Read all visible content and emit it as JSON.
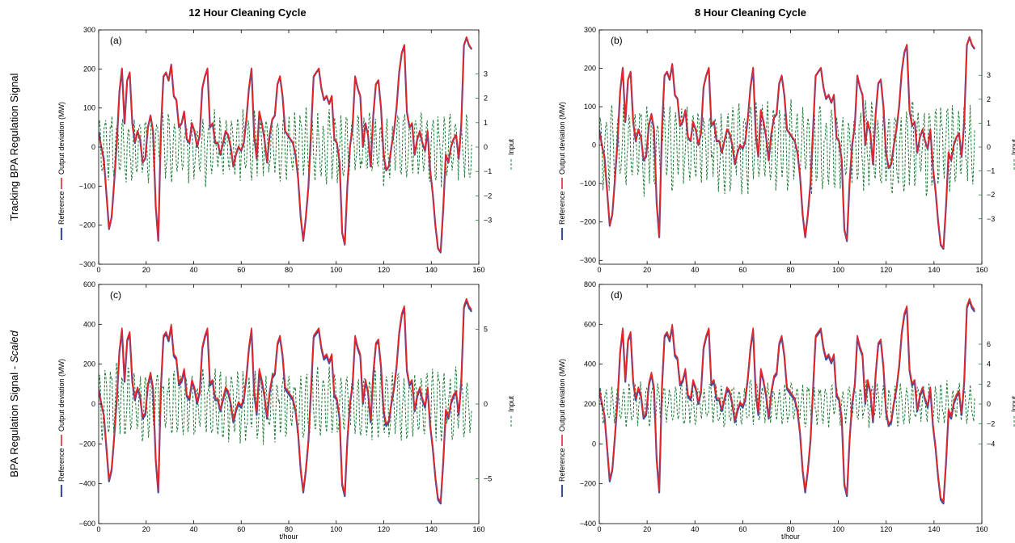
{
  "figure": {
    "col_titles": [
      "12 Hour Cleaning Cycle",
      "8 Hour Cleaning Cycle"
    ],
    "row_titles": [
      "Tracking BPA Regulation Signal",
      "BPA Regulation Signal -",
      "Scaled"
    ],
    "colors": {
      "reference": "#3b4ea0",
      "output": "#e4262b",
      "input": "#1f7a35"
    }
  },
  "chart_data": [
    {
      "type": "line",
      "panel_label": "(a)",
      "xlim": [
        0,
        160
      ],
      "ylim": [
        -300,
        300
      ],
      "y2lim": [
        -4.8,
        4.8
      ],
      "xticks": [
        0,
        20,
        40,
        60,
        80,
        100,
        120,
        140,
        160
      ],
      "yticks": [
        -300,
        -200,
        -100,
        0,
        100,
        200,
        300
      ],
      "y2ticks": [
        -3,
        -2,
        -1,
        0,
        1,
        2,
        3
      ],
      "xlabel": "",
      "ylabel": "Output deviation  (MW)",
      "ylabel_ref": "Reference",
      "y2label": "Input",
      "input_amp": 1.5,
      "out_amp": 1.0,
      "out_off": 0,
      "series": [
        {
          "values": [
            40,
            0,
            -30,
            -120,
            -210,
            -180,
            -90,
            10,
            140,
            200,
            60,
            170,
            190,
            60,
            10,
            40,
            20,
            -40,
            -30,
            50,
            80,
            40,
            -150,
            -240,
            40,
            180,
            190,
            170,
            210,
            130,
            120,
            50,
            60,
            90,
            20,
            10,
            60,
            40,
            0,
            30,
            150,
            180,
            200,
            50,
            60,
            10,
            10,
            -20,
            10,
            40,
            30,
            0,
            -50,
            -20,
            0,
            -10,
            10,
            70,
            150,
            200,
            30,
            -30,
            90,
            60,
            20,
            -40,
            30,
            70,
            80,
            160,
            180,
            130,
            40,
            30,
            20,
            10,
            -20,
            -80,
            -180,
            -240,
            -180,
            -100,
            40,
            180,
            190,
            200,
            150,
            120,
            130,
            110,
            130,
            20,
            10,
            -40,
            -220,
            -250,
            -100,
            0,
            50,
            180,
            150,
            130,
            0,
            60,
            30,
            -50,
            80,
            160,
            170,
            100,
            -20,
            -60,
            -50,
            0,
            40,
            100,
            190,
            240,
            260,
            90,
            50,
            60,
            -20,
            20,
            40,
            10,
            -10,
            40,
            -60,
            -120,
            -200,
            -260,
            -270,
            -160,
            -20,
            -40,
            0,
            20,
            30,
            -30,
            60,
            260,
            280,
            260,
            250
          ]
        },
        {
          "values": [
            40,
            10,
            -30,
            -110,
            -200,
            -170,
            -80,
            20,
            150,
            210,
            70,
            180,
            200,
            70,
            20,
            50,
            30,
            -30,
            -20,
            60,
            90,
            50,
            -140,
            -230,
            50,
            190,
            200,
            180,
            220,
            140,
            130,
            60,
            70,
            100,
            30,
            20,
            70,
            50,
            10,
            40,
            160,
            190,
            210,
            60,
            70,
            20,
            20,
            -10,
            20,
            50,
            40,
            10,
            -40,
            -10,
            10,
            0,
            20,
            80,
            160,
            210,
            40,
            -20,
            100,
            70,
            30,
            -30,
            40,
            80,
            90,
            170,
            190,
            140,
            50,
            40,
            30,
            20,
            -10,
            -70,
            -170,
            -230,
            -170,
            -90,
            50,
            190,
            200,
            210,
            160,
            130,
            140,
            120,
            140,
            30,
            20,
            -30,
            -210,
            -240,
            -90,
            10,
            60,
            190,
            160,
            140,
            10,
            70,
            40,
            -40,
            90,
            170,
            180,
            110,
            -10,
            -50,
            -40,
            10,
            50,
            110,
            200,
            250,
            270,
            100,
            60,
            70,
            -10,
            30,
            50,
            20,
            0,
            50,
            -50,
            -110,
            -190,
            -250,
            -260,
            -150,
            -10,
            -30,
            10,
            30,
            40,
            -20,
            70,
            270,
            290,
            270,
            260
          ]
        },
        {
          "seed": 1
        }
      ]
    },
    {
      "type": "line",
      "panel_label": "(b)",
      "xlim": [
        0,
        160
      ],
      "ylim": [
        -310,
        300
      ],
      "y2lim": [
        -4.9,
        4.9
      ],
      "xticks": [
        0,
        20,
        40,
        60,
        80,
        100,
        120,
        140,
        160
      ],
      "yticks": [
        -300,
        -200,
        -100,
        0,
        100,
        200,
        300
      ],
      "y2ticks": [
        -3,
        -2,
        -1,
        0,
        1,
        2,
        3
      ],
      "xlabel": "",
      "ylabel": "Output deviation  (MW)",
      "ylabel_ref": "Reference",
      "y2label": "Input",
      "input_amp": 2.0,
      "out_amp": 1.0,
      "out_off": 0,
      "series": [
        {
          "ref": 0
        },
        {
          "ref": 1
        },
        {
          "seed": 2
        }
      ]
    },
    {
      "type": "line",
      "panel_label": "(c)",
      "xlim": [
        0,
        160
      ],
      "ylim": [
        -600,
        600
      ],
      "y2lim": [
        -8,
        8
      ],
      "xticks": [
        0,
        20,
        40,
        60,
        80,
        100,
        120,
        140,
        160
      ],
      "yticks": [
        -600,
        -400,
        -200,
        0,
        200,
        400,
        600
      ],
      "y2ticks": [
        -5,
        0,
        5
      ],
      "xlabel": "t/hour",
      "ylabel": "Output deviation  (MW)",
      "ylabel_ref": "Reference",
      "y2label": "Input",
      "input_amp": 2.6,
      "out_amp": 1.85,
      "out_off": 0,
      "series": [
        {
          "ref": 0
        },
        {
          "ref": 1
        },
        {
          "seed": 3
        }
      ]
    },
    {
      "type": "line",
      "panel_label": "(d)",
      "xlim": [
        0,
        160
      ],
      "ylim": [
        -400,
        800
      ],
      "y2lim": [
        -12,
        12
      ],
      "xticks": [
        0,
        20,
        40,
        60,
        80,
        100,
        120,
        140,
        160
      ],
      "yticks": [
        -400,
        -200,
        0,
        200,
        400,
        600,
        800
      ],
      "y2ticks": [
        -4,
        -2,
        0,
        2,
        4,
        6
      ],
      "xlabel": "t/hour",
      "ylabel": "Output deviation  (MW)",
      "ylabel_ref": "Reference",
      "y2label": "Input",
      "input_amp": 2.4,
      "out_amp": 1.85,
      "out_off": 200,
      "series": [
        {
          "ref": 0
        },
        {
          "ref": 1
        },
        {
          "seed": 4
        }
      ]
    }
  ]
}
